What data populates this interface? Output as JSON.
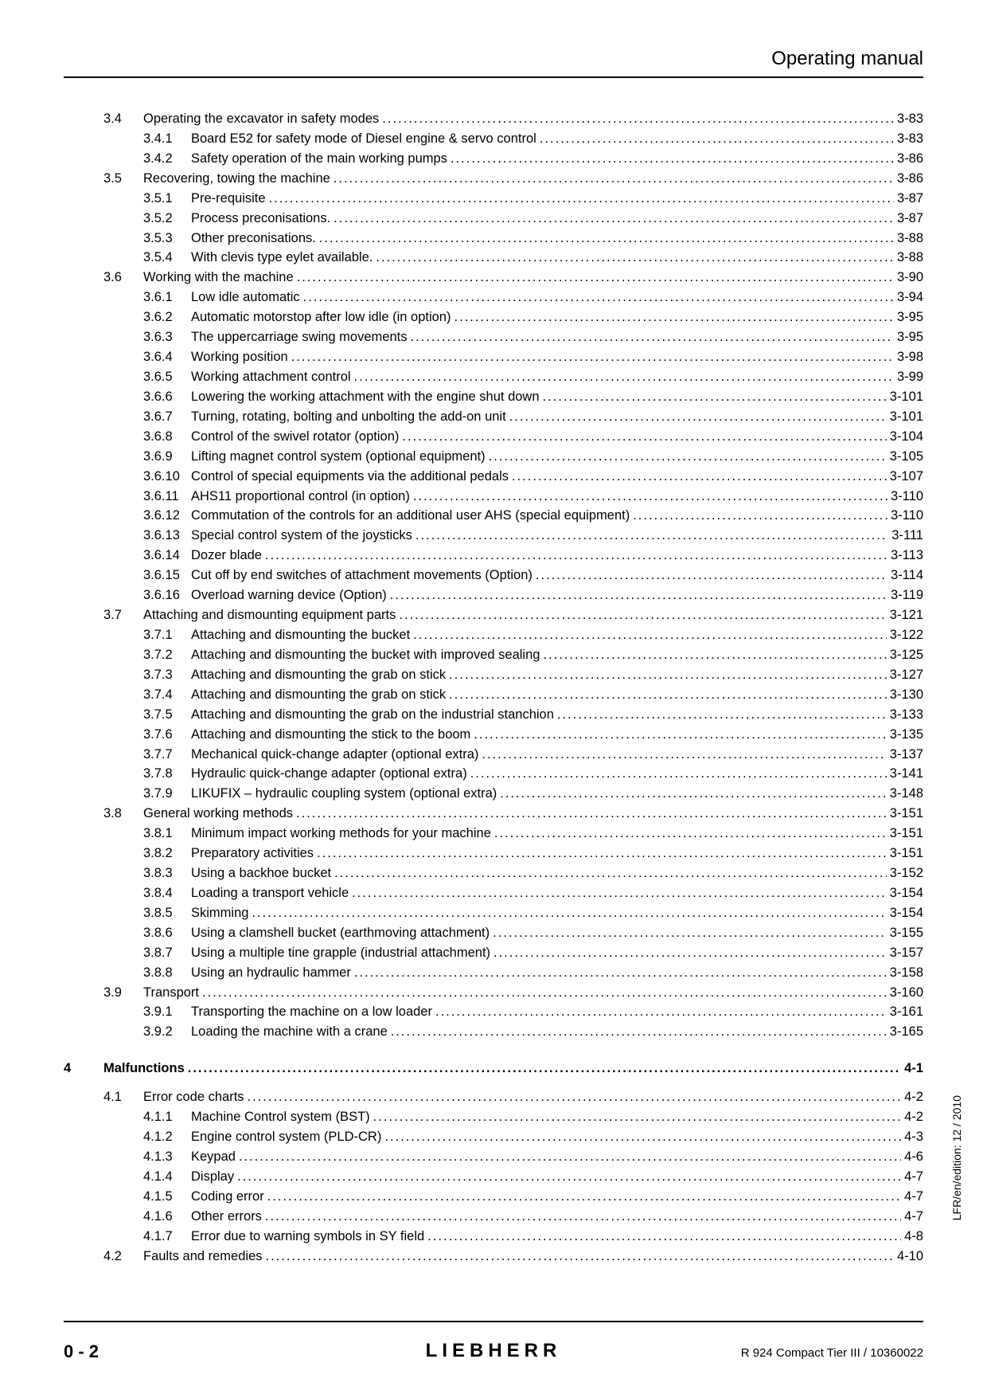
{
  "header": {
    "title": "Operating manual"
  },
  "footer": {
    "page_number": "0 - 2",
    "logo_text": "LIEBHERR",
    "model": "R 924 Compact Tier III / 10360022",
    "side_label": "LFR/en/edition: 12 / 2010"
  },
  "toc": [
    {
      "level": "section",
      "num": "3.4",
      "title": "Operating the excavator in safety modes",
      "page": "3-83"
    },
    {
      "level": "subsection",
      "num": "3.4.1",
      "title": "Board E52 for safety mode of Diesel engine & servo control",
      "page": "3-83"
    },
    {
      "level": "subsection",
      "num": "3.4.2",
      "title": "Safety operation of the main working pumps",
      "page": "3-86"
    },
    {
      "level": "section",
      "num": "3.5",
      "title": "Recovering, towing the machine",
      "page": "3-86"
    },
    {
      "level": "subsection",
      "num": "3.5.1",
      "title": "Pre-requisite",
      "page": "3-87"
    },
    {
      "level": "subsection",
      "num": "3.5.2",
      "title": "Process preconisations.",
      "page": "3-87"
    },
    {
      "level": "subsection",
      "num": "3.5.3",
      "title": "Other preconisations.",
      "page": "3-88"
    },
    {
      "level": "subsection",
      "num": "3.5.4",
      "title": "With clevis type eylet available.",
      "page": "3-88"
    },
    {
      "level": "section",
      "num": "3.6",
      "title": "Working with the machine",
      "page": "3-90"
    },
    {
      "level": "subsection",
      "num": "3.6.1",
      "title": "Low idle automatic",
      "page": "3-94"
    },
    {
      "level": "subsection",
      "num": "3.6.2",
      "title": "Automatic motorstop after low idle (in option)",
      "page": "3-95"
    },
    {
      "level": "subsection",
      "num": "3.6.3",
      "title": "The uppercarriage swing movements",
      "page": "3-95"
    },
    {
      "level": "subsection",
      "num": "3.6.4",
      "title": "Working position",
      "page": "3-98"
    },
    {
      "level": "subsection",
      "num": "3.6.5",
      "title": "Working attachment control",
      "page": "3-99"
    },
    {
      "level": "subsection",
      "num": "3.6.6",
      "title": "Lowering the working attachment with the engine shut down",
      "page": "3-101"
    },
    {
      "level": "subsection",
      "num": "3.6.7",
      "title": "Turning, rotating, bolting and unbolting the add-on unit",
      "page": "3-101"
    },
    {
      "level": "subsection",
      "num": "3.6.8",
      "title": "Control of the swivel rotator (option)",
      "page": "3-104"
    },
    {
      "level": "subsection",
      "num": "3.6.9",
      "title": "Lifting magnet control system (optional equipment)",
      "page": "3-105"
    },
    {
      "level": "subsection",
      "num": "3.6.10",
      "title": "Control of special equipments via the additional pedals",
      "page": "3-107"
    },
    {
      "level": "subsection",
      "num": "3.6.11",
      "title": "AHS11 proportional control (in option)",
      "page": "3-110"
    },
    {
      "level": "subsection",
      "num": "3.6.12",
      "title": "Commutation of the controls for an additional user AHS (special equipment)",
      "page": "3-110"
    },
    {
      "level": "subsection",
      "num": "3.6.13",
      "title": "Special control system of the joysticks",
      "page": "3-111"
    },
    {
      "level": "subsection",
      "num": "3.6.14",
      "title": "Dozer blade",
      "page": "3-113"
    },
    {
      "level": "subsection",
      "num": "3.6.15",
      "title": "Cut off by end switches of attachment movements (Option)",
      "page": "3-114"
    },
    {
      "level": "subsection",
      "num": "3.6.16",
      "title": "Overload warning device (Option)",
      "page": "3-119"
    },
    {
      "level": "section",
      "num": "3.7",
      "title": "Attaching and dismounting equipment parts",
      "page": "3-121"
    },
    {
      "level": "subsection",
      "num": "3.7.1",
      "title": "Attaching and dismounting the bucket",
      "page": "3-122"
    },
    {
      "level": "subsection",
      "num": "3.7.2",
      "title": "Attaching and dismounting the bucket with improved sealing",
      "page": "3-125"
    },
    {
      "level": "subsection",
      "num": "3.7.3",
      "title": "Attaching and dismounting the grab on stick",
      "page": "3-127"
    },
    {
      "level": "subsection",
      "num": "3.7.4",
      "title": "Attaching and dismounting the grab on stick",
      "page": "3-130"
    },
    {
      "level": "subsection",
      "num": "3.7.5",
      "title": "Attaching and dismounting the grab on the industrial stanchion",
      "page": "3-133"
    },
    {
      "level": "subsection",
      "num": "3.7.6",
      "title": "Attaching and dismounting the stick to the boom",
      "page": "3-135"
    },
    {
      "level": "subsection",
      "num": "3.7.7",
      "title": "Mechanical quick-change adapter (optional extra)",
      "page": "3-137"
    },
    {
      "level": "subsection",
      "num": "3.7.8",
      "title": "Hydraulic quick-change adapter (optional extra)",
      "page": "3-141"
    },
    {
      "level": "subsection",
      "num": "3.7.9",
      "title": "LIKUFIX – hydraulic coupling system (optional extra)",
      "page": "3-148"
    },
    {
      "level": "section",
      "num": "3.8",
      "title": "General working methods",
      "page": "3-151"
    },
    {
      "level": "subsection",
      "num": "3.8.1",
      "title": "Minimum impact working methods for your machine",
      "page": "3-151"
    },
    {
      "level": "subsection",
      "num": "3.8.2",
      "title": "Preparatory activities",
      "page": "3-151"
    },
    {
      "level": "subsection",
      "num": "3.8.3",
      "title": "Using a backhoe bucket",
      "page": "3-152"
    },
    {
      "level": "subsection",
      "num": "3.8.4",
      "title": "Loading a transport vehicle",
      "page": "3-154"
    },
    {
      "level": "subsection",
      "num": "3.8.5",
      "title": "Skimming",
      "page": "3-154"
    },
    {
      "level": "subsection",
      "num": "3.8.6",
      "title": "Using a clamshell bucket (earthmoving attachment)",
      "page": "3-155"
    },
    {
      "level": "subsection",
      "num": "3.8.7",
      "title": "Using a multiple tine grapple (industrial attachment)",
      "page": "3-157"
    },
    {
      "level": "subsection",
      "num": "3.8.8",
      "title": "Using an hydraulic hammer",
      "page": "3-158"
    },
    {
      "level": "section",
      "num": "3.9",
      "title": "Transport",
      "page": "3-160"
    },
    {
      "level": "subsection",
      "num": "3.9.1",
      "title": "Transporting the machine on a low loader",
      "page": "3-161"
    },
    {
      "level": "subsection",
      "num": "3.9.2",
      "title": "Loading the machine with a crane",
      "page": "3-165"
    },
    {
      "level": "chapter",
      "num": "4",
      "title": "Malfunctions",
      "page": "4-1"
    },
    {
      "level": "section",
      "num": "4.1",
      "title": "Error code charts",
      "page": "4-2"
    },
    {
      "level": "subsection",
      "num": "4.1.1",
      "title": "Machine Control system (BST)",
      "page": "4-2"
    },
    {
      "level": "subsection",
      "num": "4.1.2",
      "title": "Engine control system (PLD-CR)",
      "page": "4-3"
    },
    {
      "level": "subsection",
      "num": "4.1.3",
      "title": "Keypad",
      "page": "4-6"
    },
    {
      "level": "subsection",
      "num": "4.1.4",
      "title": "Display",
      "page": "4-7"
    },
    {
      "level": "subsection",
      "num": "4.1.5",
      "title": "Coding error",
      "page": "4-7"
    },
    {
      "level": "subsection",
      "num": "4.1.6",
      "title": "Other errors",
      "page": "4-7"
    },
    {
      "level": "subsection",
      "num": "4.1.7",
      "title": "Error due to warning symbols in SY field",
      "page": "4-8"
    },
    {
      "level": "section",
      "num": "4.2",
      "title": "Faults and remedies",
      "page": "4-10"
    }
  ]
}
